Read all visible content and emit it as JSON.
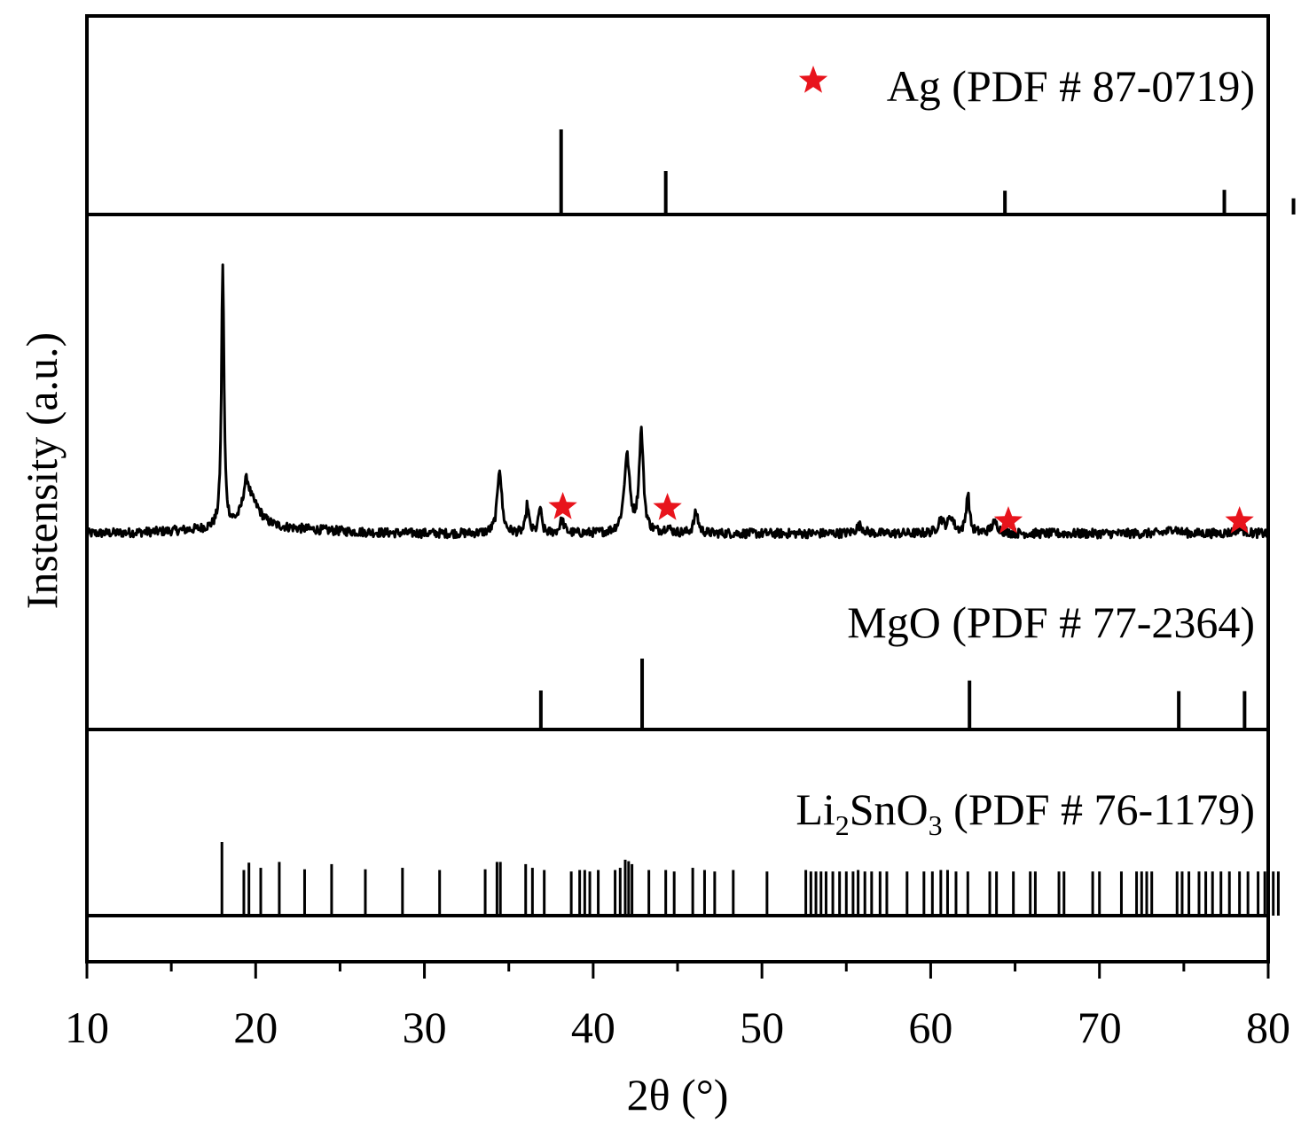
{
  "chart_data": {
    "type": "line",
    "xlabel": "2θ (°)",
    "ylabel": "Instensity (a.u.)",
    "xlim": [
      10,
      80
    ],
    "x_ticks": [
      "10",
      "20",
      "30",
      "40",
      "50",
      "60",
      "70",
      "80"
    ],
    "grid": false,
    "colors": {
      "line": "#000000",
      "marker": "#e8141c"
    },
    "reference_panels": {
      "ag": {
        "label": "Ag (PDF # 87-0719)",
        "marker_icon": "red-star",
        "peaks": [
          {
            "x": 38.1,
            "h": 1.0
          },
          {
            "x": 44.3,
            "h": 0.51
          },
          {
            "x": 64.4,
            "h": 0.28
          },
          {
            "x": 77.4,
            "h": 0.29
          },
          {
            "x": 81.5,
            "h": 0.19
          }
        ]
      },
      "mgo": {
        "label": "MgO (PDF # 77-2364)",
        "peaks": [
          {
            "x": 36.9,
            "h": 0.55
          },
          {
            "x": 42.9,
            "h": 1.0
          },
          {
            "x": 62.3,
            "h": 0.69
          },
          {
            "x": 74.7,
            "h": 0.54
          },
          {
            "x": 78.6,
            "h": 0.54
          }
        ]
      },
      "li2sno3": {
        "label_main": "Li",
        "label_sub1": "2",
        "label_mid": "SnO",
        "label_sub2": "3",
        "label_tail": " (PDF # 76-1179)",
        "peaks": [
          {
            "x": 18.0,
            "h": 1.0
          },
          {
            "x": 19.3,
            "h": 0.62
          },
          {
            "x": 19.6,
            "h": 0.72
          },
          {
            "x": 20.3,
            "h": 0.65
          },
          {
            "x": 21.4,
            "h": 0.73
          },
          {
            "x": 22.9,
            "h": 0.63
          },
          {
            "x": 24.5,
            "h": 0.7
          },
          {
            "x": 26.5,
            "h": 0.63
          },
          {
            "x": 28.7,
            "h": 0.65
          },
          {
            "x": 30.9,
            "h": 0.62
          },
          {
            "x": 33.6,
            "h": 0.63
          },
          {
            "x": 34.3,
            "h": 0.73
          },
          {
            "x": 34.5,
            "h": 0.73
          },
          {
            "x": 36.0,
            "h": 0.7
          },
          {
            "x": 36.4,
            "h": 0.65
          },
          {
            "x": 37.1,
            "h": 0.62
          },
          {
            "x": 38.7,
            "h": 0.6
          },
          {
            "x": 39.2,
            "h": 0.62
          },
          {
            "x": 39.5,
            "h": 0.62
          },
          {
            "x": 39.8,
            "h": 0.6
          },
          {
            "x": 40.3,
            "h": 0.62
          },
          {
            "x": 41.3,
            "h": 0.62
          },
          {
            "x": 41.6,
            "h": 0.65
          },
          {
            "x": 41.9,
            "h": 0.76
          },
          {
            "x": 42.1,
            "h": 0.74
          },
          {
            "x": 42.3,
            "h": 0.7
          },
          {
            "x": 43.3,
            "h": 0.62
          },
          {
            "x": 44.3,
            "h": 0.62
          },
          {
            "x": 44.8,
            "h": 0.6
          },
          {
            "x": 45.9,
            "h": 0.65
          },
          {
            "x": 46.6,
            "h": 0.62
          },
          {
            "x": 47.2,
            "h": 0.6
          },
          {
            "x": 48.3,
            "h": 0.62
          },
          {
            "x": 50.3,
            "h": 0.6
          },
          {
            "x": 52.6,
            "h": 0.62
          },
          {
            "x": 52.9,
            "h": 0.6
          },
          {
            "x": 53.2,
            "h": 0.6
          },
          {
            "x": 53.5,
            "h": 0.6
          },
          {
            "x": 53.8,
            "h": 0.6
          },
          {
            "x": 54.2,
            "h": 0.6
          },
          {
            "x": 54.6,
            "h": 0.6
          },
          {
            "x": 55.0,
            "h": 0.6
          },
          {
            "x": 55.4,
            "h": 0.6
          },
          {
            "x": 55.7,
            "h": 0.62
          },
          {
            "x": 56.1,
            "h": 0.6
          },
          {
            "x": 56.5,
            "h": 0.6
          },
          {
            "x": 57.0,
            "h": 0.6
          },
          {
            "x": 57.4,
            "h": 0.6
          },
          {
            "x": 58.6,
            "h": 0.6
          },
          {
            "x": 59.6,
            "h": 0.6
          },
          {
            "x": 60.1,
            "h": 0.6
          },
          {
            "x": 60.6,
            "h": 0.62
          },
          {
            "x": 61.0,
            "h": 0.62
          },
          {
            "x": 61.5,
            "h": 0.6
          },
          {
            "x": 62.2,
            "h": 0.6
          },
          {
            "x": 63.5,
            "h": 0.6
          },
          {
            "x": 63.9,
            "h": 0.6
          },
          {
            "x": 64.9,
            "h": 0.6
          },
          {
            "x": 65.9,
            "h": 0.6
          },
          {
            "x": 66.2,
            "h": 0.6
          },
          {
            "x": 67.6,
            "h": 0.6
          },
          {
            "x": 67.9,
            "h": 0.6
          },
          {
            "x": 69.6,
            "h": 0.6
          },
          {
            "x": 70.0,
            "h": 0.6
          },
          {
            "x": 71.3,
            "h": 0.6
          },
          {
            "x": 72.2,
            "h": 0.6
          },
          {
            "x": 72.5,
            "h": 0.6
          },
          {
            "x": 72.8,
            "h": 0.6
          },
          {
            "x": 73.1,
            "h": 0.6
          },
          {
            "x": 74.6,
            "h": 0.6
          },
          {
            "x": 74.9,
            "h": 0.6
          },
          {
            "x": 75.3,
            "h": 0.6
          },
          {
            "x": 75.9,
            "h": 0.6
          },
          {
            "x": 76.3,
            "h": 0.6
          },
          {
            "x": 76.7,
            "h": 0.6
          },
          {
            "x": 77.2,
            "h": 0.6
          },
          {
            "x": 77.7,
            "h": 0.6
          },
          {
            "x": 78.3,
            "h": 0.6
          },
          {
            "x": 78.8,
            "h": 0.6
          },
          {
            "x": 79.4,
            "h": 0.6
          },
          {
            "x": 79.8,
            "h": 0.6
          },
          {
            "x": 80.3,
            "h": 0.6
          },
          {
            "x": 80.6,
            "h": 0.6
          }
        ]
      }
    },
    "pattern": {
      "baseline": 0.0,
      "peaks": [
        {
          "x": 18.05,
          "h": 1.0,
          "w": 0.09
        },
        {
          "x": 19.45,
          "h": 0.14,
          "w": 0.25
        },
        {
          "x": 19.9,
          "h": 0.07,
          "w": 0.6
        },
        {
          "x": 34.45,
          "h": 0.25,
          "w": 0.15
        },
        {
          "x": 36.1,
          "h": 0.11,
          "w": 0.1
        },
        {
          "x": 36.85,
          "h": 0.1,
          "w": 0.1
        },
        {
          "x": 38.15,
          "h": 0.05,
          "w": 0.15
        },
        {
          "x": 42.0,
          "h": 0.29,
          "w": 0.2
        },
        {
          "x": 42.85,
          "h": 0.38,
          "w": 0.15
        },
        {
          "x": 44.4,
          "h": 0.02,
          "w": 0.2
        },
        {
          "x": 46.1,
          "h": 0.08,
          "w": 0.15
        },
        {
          "x": 55.8,
          "h": 0.03,
          "w": 0.25
        },
        {
          "x": 60.6,
          "h": 0.05,
          "w": 0.2
        },
        {
          "x": 61.2,
          "h": 0.06,
          "w": 0.2
        },
        {
          "x": 62.2,
          "h": 0.15,
          "w": 0.12
        },
        {
          "x": 63.8,
          "h": 0.04,
          "w": 0.25
        },
        {
          "x": 74.4,
          "h": 0.02,
          "w": 0.3
        },
        {
          "x": 78.3,
          "h": 0.02,
          "w": 0.3
        }
      ],
      "star_markers_x": [
        38.2,
        44.4,
        64.6,
        78.3
      ]
    }
  }
}
